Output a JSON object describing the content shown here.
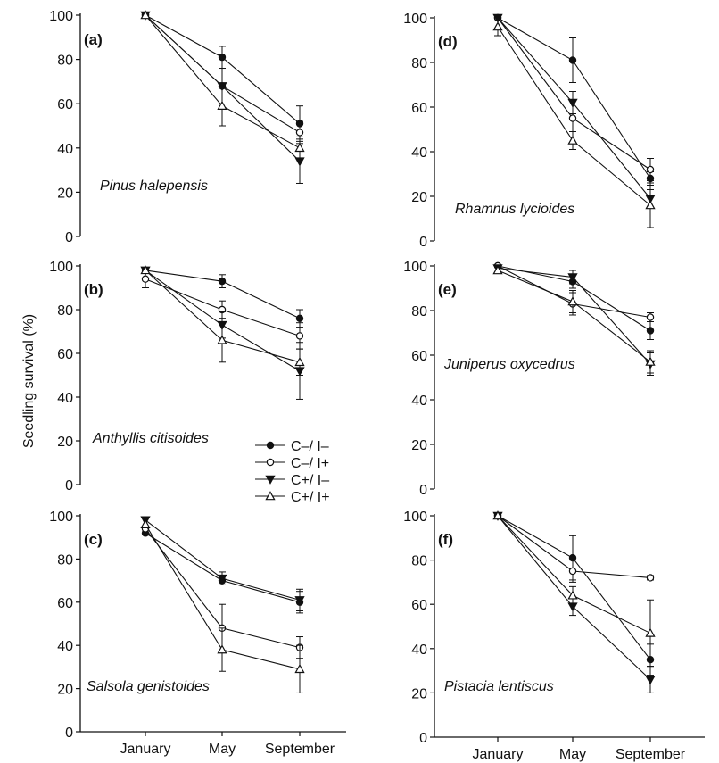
{
  "figure": {
    "ylabel": "Seedling survival (%)"
  },
  "legend": [
    {
      "label": "C–/ I–",
      "marker": "filled-circle"
    },
    {
      "label": "C–/ I+",
      "marker": "open-circle"
    },
    {
      "label": "C+/ I–",
      "marker": "filled-triangle-down"
    },
    {
      "label": "C+/ I+",
      "marker": "open-triangle-up"
    }
  ],
  "chart_data": [
    {
      "type": "line",
      "panel": "(a)",
      "species": "Pinus halepensis",
      "categories": [
        "January",
        "May",
        "September"
      ],
      "ylim": [
        0,
        100
      ],
      "yticks": [
        "0",
        "20",
        "40",
        "60",
        "80",
        "100"
      ],
      "series": [
        {
          "name": "C–/ I–",
          "marker": "filled-circle",
          "values": [
            100,
            81,
            51
          ],
          "errors": [
            0,
            5,
            8
          ]
        },
        {
          "name": "C–/ I+",
          "marker": "open-circle",
          "values": [
            100,
            68,
            47
          ],
          "errors": [
            0,
            18,
            5
          ]
        },
        {
          "name": "C+/ I–",
          "marker": "filled-triangle-down",
          "values": [
            100,
            68,
            34
          ],
          "errors": [
            0,
            18,
            10
          ]
        },
        {
          "name": "C+/ I+",
          "marker": "open-triangle-up",
          "values": [
            100,
            59,
            40
          ],
          "errors": [
            0,
            9,
            5
          ]
        }
      ]
    },
    {
      "type": "line",
      "panel": "(b)",
      "species": "Anthyllis citisoides",
      "categories": [
        "January",
        "May",
        "September"
      ],
      "ylim": [
        0,
        100
      ],
      "yticks": [
        "0",
        "20",
        "40",
        "60",
        "80",
        "100"
      ],
      "series": [
        {
          "name": "C–/ I–",
          "marker": "filled-circle",
          "values": [
            98,
            93,
            76
          ],
          "errors": [
            0,
            3,
            4
          ]
        },
        {
          "name": "C–/ I+",
          "marker": "open-circle",
          "values": [
            94,
            80,
            68
          ],
          "errors": [
            4,
            4,
            6
          ]
        },
        {
          "name": "C+/ I–",
          "marker": "filled-triangle-down",
          "values": [
            98,
            73,
            52
          ],
          "errors": [
            0,
            6,
            13
          ]
        },
        {
          "name": "C+/ I+",
          "marker": "open-triangle-up",
          "values": [
            98,
            66,
            56
          ],
          "errors": [
            0,
            10,
            6
          ]
        }
      ]
    },
    {
      "type": "line",
      "panel": "(c)",
      "species": "Salsola genistoides",
      "categories": [
        "January",
        "May",
        "September"
      ],
      "ylim": [
        0,
        100
      ],
      "yticks": [
        "0",
        "20",
        "40",
        "60",
        "80",
        "100"
      ],
      "series": [
        {
          "name": "C–/ I–",
          "marker": "filled-circle",
          "values": [
            92,
            70,
            60
          ],
          "errors": [
            0,
            2,
            5
          ]
        },
        {
          "name": "C–/ I+",
          "marker": "open-circle",
          "values": [
            94,
            48,
            39
          ],
          "errors": [
            0,
            11,
            5
          ]
        },
        {
          "name": "C+/ I–",
          "marker": "filled-triangle-down",
          "values": [
            98,
            71,
            61
          ],
          "errors": [
            0,
            3,
            5
          ]
        },
        {
          "name": "C+/ I+",
          "marker": "open-triangle-up",
          "values": [
            96,
            38,
            29
          ],
          "errors": [
            0,
            10,
            11
          ]
        }
      ]
    },
    {
      "type": "line",
      "panel": "(d)",
      "species": "Rhamnus lycioides",
      "categories": [
        "January",
        "May",
        "September"
      ],
      "ylim": [
        0,
        100
      ],
      "yticks": [
        "0",
        "20",
        "40",
        "60",
        "80",
        "100"
      ],
      "series": [
        {
          "name": "C–/ I–",
          "marker": "filled-circle",
          "values": [
            100,
            81,
            28
          ],
          "errors": [
            0,
            10,
            3
          ]
        },
        {
          "name": "C–/ I+",
          "marker": "open-circle",
          "values": [
            100,
            55,
            32
          ],
          "errors": [
            0,
            12,
            5
          ]
        },
        {
          "name": "C+/ I–",
          "marker": "filled-triangle-down",
          "values": [
            100,
            62,
            19
          ],
          "errors": [
            0,
            5,
            4
          ]
        },
        {
          "name": "C+/ I+",
          "marker": "open-triangle-up",
          "values": [
            96,
            45,
            16
          ],
          "errors": [
            4,
            4,
            10
          ]
        }
      ]
    },
    {
      "type": "line",
      "panel": "(e)",
      "species": "Juniperus oxycedrus",
      "categories": [
        "January",
        "May",
        "September"
      ],
      "ylim": [
        0,
        100
      ],
      "yticks": [
        "0",
        "20",
        "40",
        "60",
        "80",
        "100"
      ],
      "series": [
        {
          "name": "C–/ I–",
          "marker": "filled-circle",
          "values": [
            100,
            93,
            71
          ],
          "errors": [
            0,
            3,
            4
          ]
        },
        {
          "name": "C–/ I+",
          "marker": "open-circle",
          "values": [
            100,
            83,
            77
          ],
          "errors": [
            0,
            5,
            2
          ]
        },
        {
          "name": "C+/ I–",
          "marker": "filled-triangle-down",
          "values": [
            99,
            95,
            56
          ],
          "errors": [
            0,
            3,
            5
          ]
        },
        {
          "name": "C+/ I+",
          "marker": "open-triangle-up",
          "values": [
            98,
            84,
            57
          ],
          "errors": [
            0,
            5,
            5
          ]
        }
      ]
    },
    {
      "type": "line",
      "panel": "(f)",
      "species": "Pistacia lentiscus",
      "categories": [
        "January",
        "May",
        "September"
      ],
      "ylim": [
        0,
        100
      ],
      "yticks": [
        "0",
        "20",
        "40",
        "60",
        "80",
        "100"
      ],
      "series": [
        {
          "name": "C–/ I–",
          "marker": "filled-circle",
          "values": [
            100,
            81,
            35
          ],
          "errors": [
            0,
            10,
            7
          ]
        },
        {
          "name": "C–/ I+",
          "marker": "open-circle",
          "values": [
            100,
            75,
            72
          ],
          "errors": [
            0,
            5,
            1
          ]
        },
        {
          "name": "C+/ I–",
          "marker": "filled-triangle-down",
          "values": [
            100,
            59,
            26
          ],
          "errors": [
            0,
            4,
            6
          ]
        },
        {
          "name": "C+/ I+",
          "marker": "open-triangle-up",
          "values": [
            100,
            64,
            47
          ],
          "errors": [
            0,
            4,
            15
          ]
        }
      ]
    }
  ]
}
